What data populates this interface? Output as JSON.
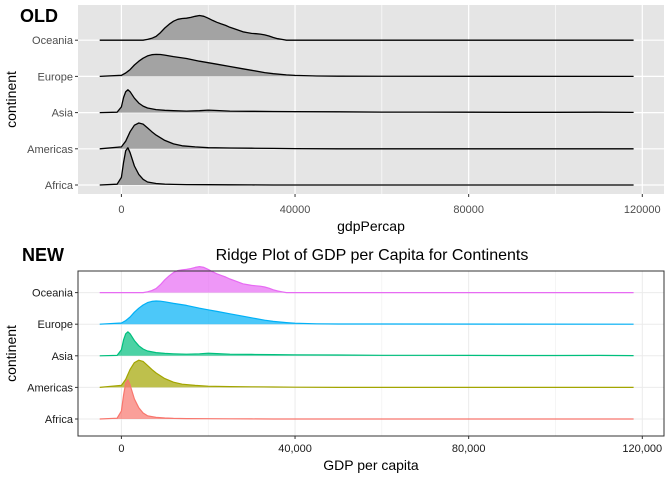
{
  "chart_data": [
    {
      "type": "area",
      "variant": "ridgeline",
      "panel_tag": "OLD",
      "title": "",
      "xlabel": "gdpPercap",
      "ylabel": "continent",
      "xlim": [
        -10000,
        125000
      ],
      "x_ticks": [
        0,
        40000,
        80000,
        120000
      ],
      "x_tick_labels": [
        "0",
        "40000",
        "80000",
        "120000"
      ],
      "categories": [
        "Africa",
        "Americas",
        "Asia",
        "Europe",
        "Oceania"
      ],
      "theme": {
        "panel_bg": "#e5e5e5",
        "grid": "#ffffff",
        "fill": "#a3a3a3",
        "stroke": "#000000"
      },
      "series": [
        {
          "name": "Africa",
          "points": [
            [
              -5000,
              0
            ],
            [
              -1000,
              0.02
            ],
            [
              0,
              0.2
            ],
            [
              500,
              0.6
            ],
            [
              1000,
              0.9
            ],
            [
              1500,
              0.98
            ],
            [
              2000,
              0.85
            ],
            [
              3000,
              0.5
            ],
            [
              4000,
              0.28
            ],
            [
              5000,
              0.15
            ],
            [
              6000,
              0.08
            ],
            [
              8000,
              0.04
            ],
            [
              10000,
              0.025
            ],
            [
              12000,
              0.015
            ],
            [
              15000,
              0.01
            ],
            [
              20000,
              0.008
            ],
            [
              25000,
              0.005
            ],
            [
              30000,
              0.003
            ],
            [
              35000,
              0.001
            ],
            [
              50000,
              0
            ],
            [
              118000,
              0
            ]
          ]
        },
        {
          "name": "Americas",
          "points": [
            [
              -5000,
              0
            ],
            [
              0,
              0.05
            ],
            [
              1000,
              0.2
            ],
            [
              2000,
              0.45
            ],
            [
              3000,
              0.62
            ],
            [
              4000,
              0.68
            ],
            [
              5000,
              0.65
            ],
            [
              6000,
              0.55
            ],
            [
              7000,
              0.45
            ],
            [
              8000,
              0.36
            ],
            [
              10000,
              0.22
            ],
            [
              12000,
              0.13
            ],
            [
              14000,
              0.08
            ],
            [
              17000,
              0.05
            ],
            [
              20000,
              0.03
            ],
            [
              25000,
              0.02
            ],
            [
              30000,
              0.015
            ],
            [
              35000,
              0.01
            ],
            [
              40000,
              0.005
            ],
            [
              50000,
              0
            ],
            [
              118000,
              0
            ]
          ]
        },
        {
          "name": "Asia",
          "points": [
            [
              -5000,
              0
            ],
            [
              -1000,
              0.01
            ],
            [
              0,
              0.15
            ],
            [
              500,
              0.4
            ],
            [
              1000,
              0.55
            ],
            [
              1500,
              0.6
            ],
            [
              2000,
              0.55
            ],
            [
              3000,
              0.38
            ],
            [
              4000,
              0.25
            ],
            [
              5000,
              0.17
            ],
            [
              6000,
              0.12
            ],
            [
              8000,
              0.08
            ],
            [
              10000,
              0.06
            ],
            [
              12000,
              0.05
            ],
            [
              15000,
              0.04
            ],
            [
              18000,
              0.05
            ],
            [
              20000,
              0.065
            ],
            [
              22000,
              0.055
            ],
            [
              25000,
              0.04
            ],
            [
              30000,
              0.035
            ],
            [
              35000,
              0.03
            ],
            [
              40000,
              0.025
            ],
            [
              50000,
              0.02
            ],
            [
              60000,
              0.012
            ],
            [
              70000,
              0.012
            ],
            [
              80000,
              0.01
            ],
            [
              90000,
              0.008
            ],
            [
              100000,
              0.008
            ],
            [
              110000,
              0.01
            ],
            [
              118000,
              0.005
            ]
          ]
        },
        {
          "name": "Europe",
          "points": [
            [
              -5000,
              0
            ],
            [
              0,
              0.03
            ],
            [
              1000,
              0.09
            ],
            [
              2000,
              0.18
            ],
            [
              3000,
              0.3
            ],
            [
              4000,
              0.4
            ],
            [
              5000,
              0.48
            ],
            [
              6000,
              0.54
            ],
            [
              7000,
              0.57
            ],
            [
              8000,
              0.58
            ],
            [
              9000,
              0.575
            ],
            [
              10000,
              0.56
            ],
            [
              12000,
              0.52
            ],
            [
              15000,
              0.47
            ],
            [
              18000,
              0.4
            ],
            [
              20000,
              0.36
            ],
            [
              22000,
              0.32
            ],
            [
              25000,
              0.26
            ],
            [
              28000,
              0.2
            ],
            [
              30000,
              0.16
            ],
            [
              33000,
              0.1
            ],
            [
              35000,
              0.07
            ],
            [
              38000,
              0.04
            ],
            [
              40000,
              0.025
            ],
            [
              45000,
              0.01
            ],
            [
              50000,
              0.005
            ],
            [
              118000,
              0
            ]
          ]
        },
        {
          "name": "Oceania",
          "points": [
            [
              -5000,
              0
            ],
            [
              5000,
              0
            ],
            [
              6000,
              0.02
            ],
            [
              7000,
              0.05
            ],
            [
              8000,
              0.1
            ],
            [
              9000,
              0.2
            ],
            [
              10000,
              0.32
            ],
            [
              11000,
              0.42
            ],
            [
              12000,
              0.5
            ],
            [
              13000,
              0.55
            ],
            [
              14000,
              0.57
            ],
            [
              15000,
              0.58
            ],
            [
              16000,
              0.6
            ],
            [
              17000,
              0.63
            ],
            [
              18000,
              0.65
            ],
            [
              19000,
              0.63
            ],
            [
              20000,
              0.58
            ],
            [
              21000,
              0.52
            ],
            [
              22000,
              0.47
            ],
            [
              23000,
              0.43
            ],
            [
              24000,
              0.39
            ],
            [
              25000,
              0.34
            ],
            [
              26000,
              0.3
            ],
            [
              27000,
              0.26
            ],
            [
              28000,
              0.22
            ],
            [
              29000,
              0.2
            ],
            [
              30000,
              0.18
            ],
            [
              31000,
              0.17
            ],
            [
              32000,
              0.16
            ],
            [
              33000,
              0.14
            ],
            [
              34000,
              0.11
            ],
            [
              35000,
              0.07
            ],
            [
              36000,
              0.04
            ],
            [
              37000,
              0.02
            ],
            [
              38000,
              0
            ],
            [
              118000,
              0
            ]
          ]
        }
      ]
    },
    {
      "type": "area",
      "variant": "ridgeline",
      "panel_tag": "NEW",
      "title": "Ridge Plot of GDP per Capita for Continents",
      "xlabel": "GDP per capita",
      "ylabel": "continent",
      "xlim": [
        -10000,
        125000
      ],
      "x_ticks": [
        0,
        40000,
        80000,
        120000
      ],
      "x_tick_labels": [
        "0",
        "40,000",
        "80,000",
        "120,000"
      ],
      "categories": [
        "Africa",
        "Americas",
        "Asia",
        "Europe",
        "Oceania"
      ],
      "theme": {
        "panel_bg": "#ffffff",
        "grid": "#ebebeb",
        "border": "#333333"
      },
      "series_colors": {
        "Africa": "#F8766D",
        "Americas": "#A3A500",
        "Asia": "#00BF7D",
        "Europe": "#00B0F6",
        "Oceania": "#E76BF3"
      },
      "fill_opacity": 0.7,
      "same_data_as_panel": 0
    }
  ]
}
